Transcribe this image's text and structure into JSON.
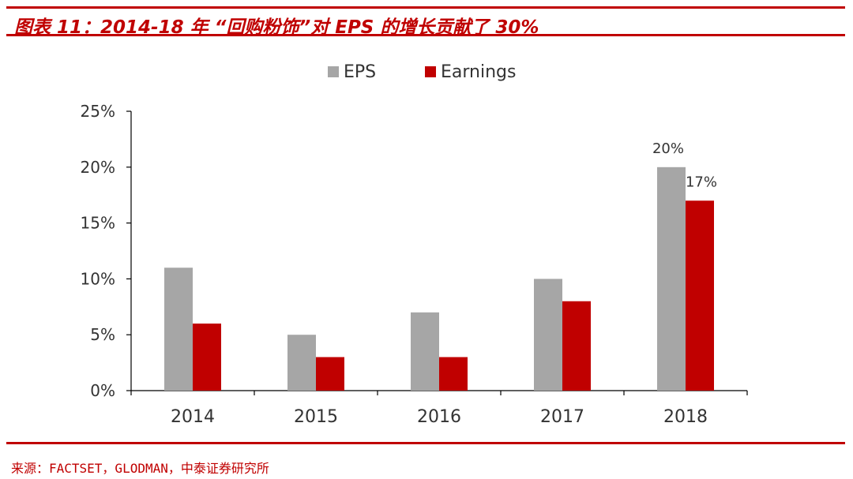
{
  "figure": {
    "title": "图表 11：2014-18 年 “回购粉饰”对 EPS 的增长贡献了 30%",
    "source": "来源：FACTSET，GLODMAN，中泰证券研究所"
  },
  "colors": {
    "accent": "#c00000",
    "eps": "#a6a6a6",
    "earnings": "#c00000",
    "axis": "#000000"
  },
  "chart_data": {
    "type": "bar",
    "title": "",
    "xlabel": "",
    "ylabel": "",
    "categories": [
      "2014",
      "2015",
      "2016",
      "2017",
      "2018"
    ],
    "series": [
      {
        "name": "EPS",
        "values": [
          11,
          5,
          7,
          10,
          20
        ]
      },
      {
        "name": "Earnings",
        "values": [
          6,
          3,
          3,
          8,
          17
        ]
      }
    ],
    "data_labels": [
      {
        "series": "EPS",
        "category": "2018",
        "text": "20%"
      },
      {
        "series": "Earnings",
        "category": "2018",
        "text": "17%"
      }
    ],
    "ylim": [
      0,
      25
    ],
    "yticks": [
      0,
      5,
      10,
      15,
      20,
      25
    ],
    "ytick_labels": [
      "0%",
      "5%",
      "10%",
      "15%",
      "20%",
      "25%"
    ],
    "legend_position": "top-center",
    "grid": false
  }
}
